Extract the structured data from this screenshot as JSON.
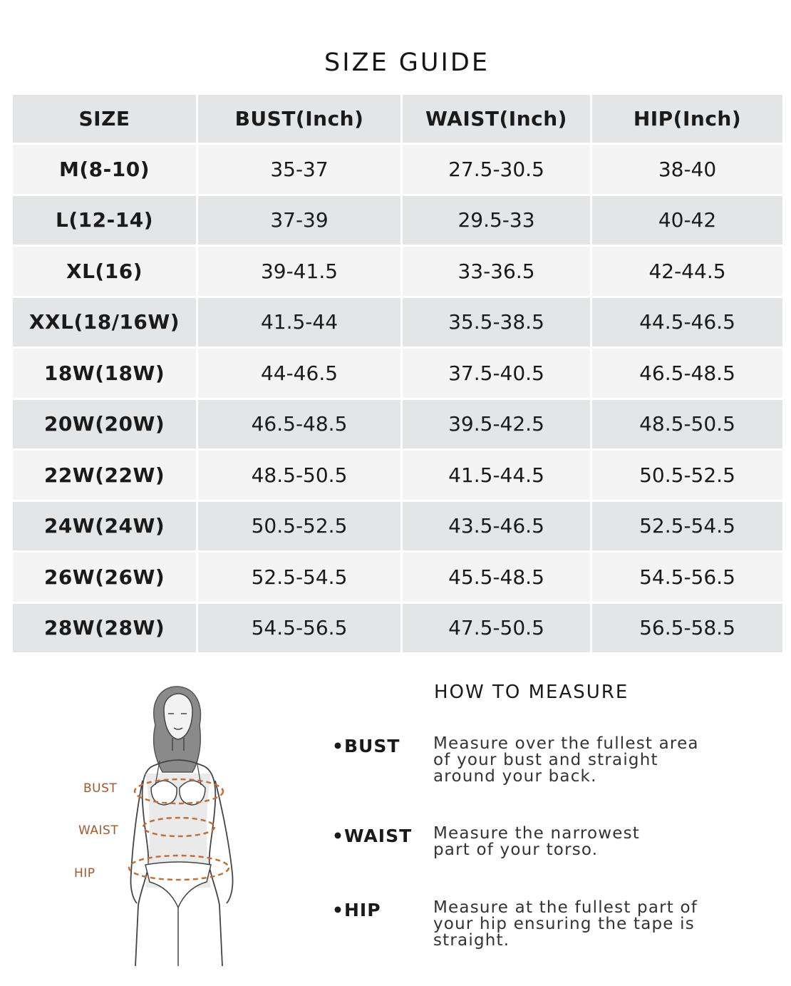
{
  "title": "SIZE GUIDE",
  "table": {
    "headers": [
      "SIZE",
      "BUST(Inch)",
      "WAIST(Inch)",
      "HIP(Inch)"
    ],
    "rows": [
      [
        "M(8-10)",
        "35-37",
        "27.5-30.5",
        "38-40"
      ],
      [
        "L(12-14)",
        "37-39",
        "29.5-33",
        "40-42"
      ],
      [
        "XL(16)",
        "39-41.5",
        "33-36.5",
        "42-44.5"
      ],
      [
        "XXL(18/16W)",
        "41.5-44",
        "35.5-38.5",
        "44.5-46.5"
      ],
      [
        "18W(18W)",
        "44-46.5",
        "37.5-40.5",
        "46.5-48.5"
      ],
      [
        "20W(20W)",
        "46.5-48.5",
        "39.5-42.5",
        "48.5-50.5"
      ],
      [
        "22W(22W)",
        "48.5-50.5",
        "41.5-44.5",
        "50.5-52.5"
      ],
      [
        "24W(24W)",
        "50.5-52.5",
        "43.5-46.5",
        "52.5-54.5"
      ],
      [
        "26W(26W)",
        "52.5-54.5",
        "45.5-48.5",
        "54.5-56.5"
      ],
      [
        "28W(28W)",
        "54.5-56.5",
        "47.5-50.5",
        "56.5-58.5"
      ]
    ]
  },
  "figure": {
    "labels": {
      "bust": "BUST",
      "waist": "WAIST",
      "hip": "HIP"
    },
    "accent_color": "#c0703a"
  },
  "howto": {
    "title": "HOW TO MEASURE",
    "items": [
      {
        "label": "•BUST",
        "text": [
          "Measure over the fullest area",
          "of your bust and straight",
          "around your back."
        ]
      },
      {
        "label": "•WAIST",
        "text": [
          "Measure the narrowest",
          "part of your torso."
        ]
      },
      {
        "label": "•HIP",
        "text": [
          "Measure at the fullest part of",
          "your hip ensuring the tape is",
          "straight."
        ]
      }
    ]
  }
}
